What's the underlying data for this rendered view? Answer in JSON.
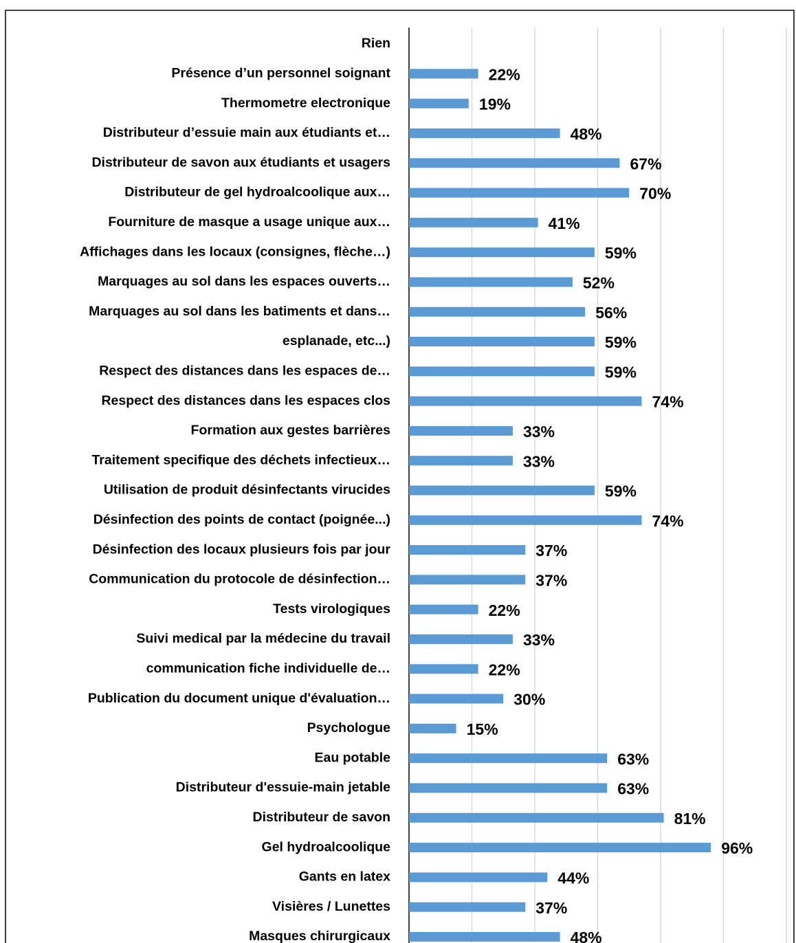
{
  "chart_data": {
    "type": "bar",
    "orientation": "horizontal",
    "categories": [
      "Rien",
      "Présence d’un personnel soignant",
      "Thermometre electronique",
      "Distributeur d’essuie main aux étudiants et…",
      "Distributeur de savon aux étudiants et usagers",
      "Distributeur de gel hydroalcoolique aux…",
      "Fourniture de masque a usage unique aux…",
      "Affichages dans les locaux (consignes, flèche…)",
      "Marquages au sol dans les espaces ouverts…",
      "Marquages au sol dans les batiments et dans…",
      "esplanade, etc...)",
      "Respect des distances dans les espaces de…",
      "Respect des distances dans les espaces clos",
      "Formation aux gestes barrières",
      "Traitement specifique des déchets infectieux…",
      "Utilisation de produit désinfectants virucides",
      "Désinfection des points de contact (poignée...)",
      "Désinfection des locaux plusieurs fois par jour",
      "Communication du protocole de désinfection…",
      "Tests virologiques",
      "Suivi medical par la médecine du travail",
      "communication fiche individuelle de…",
      "Publication du document unique d'évaluation…",
      "Psychologue",
      "Eau potable",
      "Distributeur d'essuie-main jetable",
      "Distributeur de savon",
      "Gel hydroalcoolique",
      "Gants en latex",
      "Visières / Lunettes",
      "Masques chirurgicaux"
    ],
    "values": [
      null,
      22,
      19,
      48,
      67,
      70,
      41,
      59,
      52,
      56,
      59,
      59,
      74,
      33,
      33,
      59,
      74,
      37,
      37,
      22,
      33,
      22,
      30,
      15,
      63,
      63,
      81,
      96,
      44,
      37,
      48
    ],
    "value_labels": [
      null,
      "22%",
      "19%",
      "48%",
      "67%",
      "70%",
      "41%",
      "59%",
      "52%",
      "56%",
      "59%",
      "59%",
      "74%",
      "33%",
      "33%",
      "59%",
      "74%",
      "37%",
      "37%",
      "22%",
      "33%",
      "22%",
      "30%",
      "15%",
      "63%",
      "63%",
      "81%",
      "96%",
      "44%",
      "37%",
      "48%"
    ],
    "color": "#5b9bd5",
    "xlim": [
      0,
      120
    ],
    "xticks": [
      0,
      20,
      40,
      60,
      80,
      100,
      120
    ],
    "grid": true
  }
}
